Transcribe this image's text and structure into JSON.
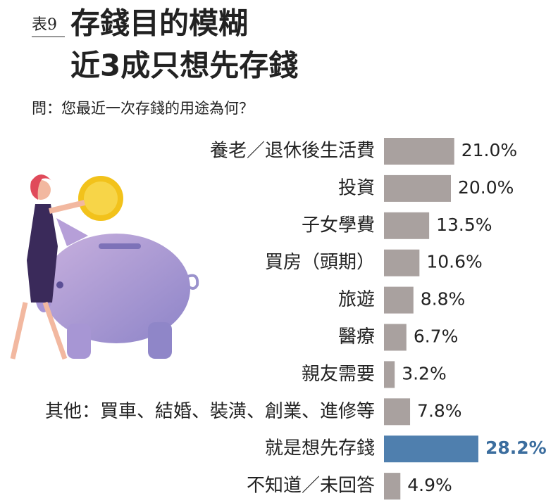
{
  "chart_data": {
    "type": "bar",
    "orientation": "horizontal",
    "table_label": "表9",
    "title_lines": [
      "存錢目的模糊",
      "近3成只想先存錢"
    ],
    "subtitle": "問：您最近一次存錢的用途為何？",
    "categories": [
      "養老／退休後生活費",
      "投資",
      "子女學費",
      "買房（頭期）",
      "旅遊",
      "醫療",
      "親友需要",
      "其他：買車、結婚、裝潢、創業、進修等",
      "就是想先存錢",
      "不知道／未回答"
    ],
    "values": [
      21.0,
      20.0,
      13.5,
      10.6,
      8.8,
      6.7,
      3.2,
      7.8,
      28.2,
      4.9
    ],
    "value_labels": [
      "21.0%",
      "20.0%",
      "13.5%",
      "10.6%",
      "8.8%",
      "6.7%",
      "3.2%",
      "7.8%",
      "28.2%",
      "4.9%"
    ],
    "colors": [
      "#a9a19f",
      "#a9a19f",
      "#a9a19f",
      "#a9a19f",
      "#a9a19f",
      "#a9a19f",
      "#a9a19f",
      "#a9a19f",
      "#4f7fae",
      "#a9a19f"
    ],
    "label_colors": [
      "#222222",
      "#222222",
      "#222222",
      "#222222",
      "#222222",
      "#222222",
      "#222222",
      "#222222",
      "#3b6d9e",
      "#222222"
    ]
  }
}
